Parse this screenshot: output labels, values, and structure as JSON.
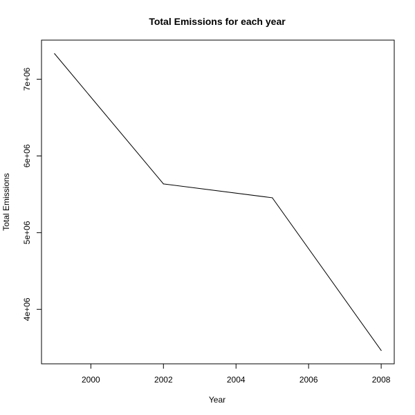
{
  "chart_data": {
    "type": "line",
    "title": "Total Emissions for each year",
    "xlabel": "Year",
    "ylabel": "Total Emissions",
    "x": [
      1999,
      2002,
      2005,
      2008
    ],
    "values": [
      7332967,
      5635780,
      5454703,
      3464206
    ],
    "xlim": [
      1998.64,
      2008.36
    ],
    "ylim": [
      3290000.0,
      7510000.0
    ],
    "xticks": [
      2000,
      2002,
      2004,
      2006,
      2008
    ],
    "xtick_labels": [
      "2000",
      "2002",
      "2004",
      "2006",
      "2008"
    ],
    "yticks": [
      4000000,
      5000000,
      6000000,
      7000000
    ],
    "ytick_labels": [
      "4e+06",
      "5e+06",
      "6e+06",
      "7e+06"
    ],
    "line_color": "#000000",
    "grid": false,
    "legend": "none"
  }
}
